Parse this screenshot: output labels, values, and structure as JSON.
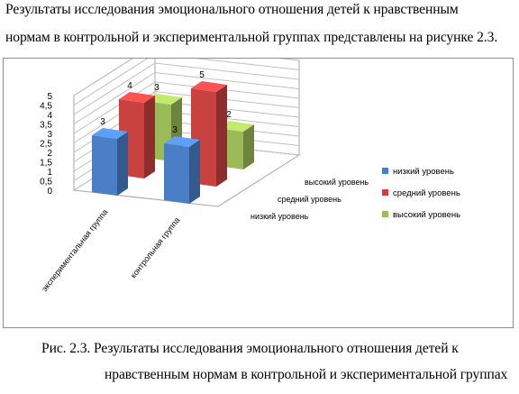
{
  "text": {
    "line1": "Результаты исследования эмоционального отношения детей к нравственным",
    "line2": "нормам в контрольной и экспериментальной группах представлены на рисунке 2.3.",
    "caption1": "Рис. 2.3. Результаты исследования эмоционального отношения детей к",
    "caption2": "нравственным нормам в контрольной и экспериментальной группах"
  },
  "chart_data": {
    "type": "bar",
    "subtype": "3d-column",
    "categories": [
      "экспериментальная группа",
      "контрольная группа"
    ],
    "series": [
      {
        "name": "низкий уровень",
        "values": [
          3,
          3
        ],
        "color": "#4a7fc8"
      },
      {
        "name": "средний уровень",
        "values": [
          4,
          5
        ],
        "color": "#c94240"
      },
      {
        "name": "высокий уровень",
        "values": [
          3,
          2
        ],
        "color": "#9bbb59"
      }
    ],
    "y_ticks": [
      "0",
      "0,5",
      "1",
      "1,5",
      "2",
      "2,5",
      "3",
      "3,5",
      "4",
      "4,5",
      "5"
    ],
    "ylim": [
      0,
      5
    ],
    "title": "",
    "xlabel": "",
    "ylabel": "",
    "legend_position": "right",
    "grid": true
  }
}
